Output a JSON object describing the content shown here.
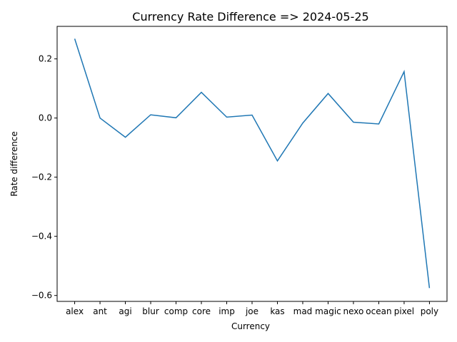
{
  "chart_data": {
    "type": "line",
    "title": "Currency Rate Difference => 2024-05-25",
    "xlabel": "Currency",
    "ylabel": "Rate difference",
    "categories": [
      "alex",
      "ant",
      "agi",
      "blur",
      "comp",
      "core",
      "imp",
      "joe",
      "kas",
      "mad",
      "magic",
      "nexo",
      "ocean",
      "pixel",
      "poly"
    ],
    "values": [
      0.268,
      0.0,
      -0.065,
      0.011,
      0.001,
      0.087,
      0.003,
      0.01,
      -0.145,
      -0.017,
      0.083,
      -0.014,
      -0.02,
      0.157,
      -0.575
    ],
    "ylim": [
      -0.62,
      0.31
    ],
    "yticks": [
      -0.6,
      -0.4,
      -0.2,
      0.0,
      0.2
    ],
    "ytick_labels": [
      "−0.6",
      "−0.4",
      "−0.2",
      "0.0",
      "0.2"
    ],
    "grid": false,
    "line_color": "#1f77b4"
  }
}
